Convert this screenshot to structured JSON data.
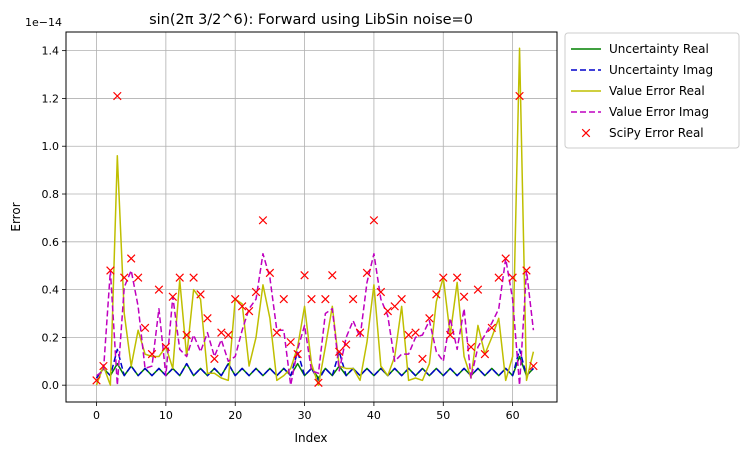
{
  "chart_data": {
    "type": "line",
    "title": "sin(2π 3/2^6): Forward using LibSin noise=0",
    "xlabel": "Index",
    "ylabel": "Error",
    "y_multiplier_label": "1e−14",
    "y_scale_exponent": -14,
    "xlim": [
      -4.4,
      66.4
    ],
    "ylim": [
      -0.0704,
      1.478
    ],
    "x_ticks": [
      0,
      10,
      20,
      30,
      40,
      50,
      60
    ],
    "y_ticks": [
      0.0,
      0.2,
      0.4,
      0.6,
      0.8,
      1.0,
      1.2,
      1.4
    ],
    "y_tick_labels": [
      "0.0",
      "0.2",
      "0.4",
      "0.6",
      "0.8",
      "1.0",
      "1.2",
      "1.4"
    ],
    "grid": true,
    "legend_position": "outside-upper-right",
    "x": [
      0,
      1,
      2,
      3,
      4,
      5,
      6,
      7,
      8,
      9,
      10,
      11,
      12,
      13,
      14,
      15,
      16,
      17,
      18,
      19,
      20,
      21,
      22,
      23,
      24,
      25,
      26,
      27,
      28,
      29,
      30,
      31,
      32,
      33,
      34,
      35,
      36,
      37,
      38,
      39,
      40,
      41,
      42,
      43,
      44,
      45,
      46,
      47,
      48,
      49,
      50,
      51,
      52,
      53,
      54,
      55,
      56,
      57,
      58,
      59,
      60,
      61,
      62,
      63
    ],
    "series": [
      {
        "name": "Uncertainty Real",
        "color": "#008000",
        "style": "solid",
        "values": [
          0.03,
          0.07,
          0.04,
          0.09,
          0.04,
          0.08,
          0.04,
          0.07,
          0.04,
          0.07,
          0.04,
          0.07,
          0.04,
          0.09,
          0.04,
          0.07,
          0.04,
          0.07,
          0.04,
          0.09,
          0.04,
          0.07,
          0.04,
          0.07,
          0.04,
          0.07,
          0.04,
          0.07,
          0.04,
          0.09,
          0.04,
          0.07,
          0.03,
          0.07,
          0.04,
          0.08,
          0.04,
          0.07,
          0.04,
          0.07,
          0.04,
          0.07,
          0.04,
          0.07,
          0.04,
          0.07,
          0.04,
          0.07,
          0.04,
          0.07,
          0.04,
          0.07,
          0.04,
          0.07,
          0.04,
          0.07,
          0.04,
          0.07,
          0.04,
          0.07,
          0.04,
          0.12,
          0.04,
          0.07
        ]
      },
      {
        "name": "Uncertainty Imag",
        "color": "#0000cc",
        "style": "dashed",
        "values": [
          0.03,
          0.07,
          0.04,
          0.15,
          0.04,
          0.08,
          0.04,
          0.07,
          0.04,
          0.07,
          0.04,
          0.07,
          0.04,
          0.09,
          0.04,
          0.07,
          0.04,
          0.07,
          0.04,
          0.09,
          0.04,
          0.07,
          0.04,
          0.07,
          0.04,
          0.07,
          0.04,
          0.07,
          0.04,
          0.14,
          0.04,
          0.07,
          0.02,
          0.07,
          0.04,
          0.14,
          0.04,
          0.07,
          0.04,
          0.07,
          0.04,
          0.07,
          0.04,
          0.07,
          0.04,
          0.07,
          0.04,
          0.07,
          0.04,
          0.07,
          0.04,
          0.07,
          0.04,
          0.07,
          0.04,
          0.07,
          0.04,
          0.07,
          0.04,
          0.07,
          0.04,
          0.15,
          0.04,
          0.07
        ]
      },
      {
        "name": "Value Error Real",
        "color": "#bfbf00",
        "style": "solid",
        "values": [
          0.0,
          0.08,
          0.0,
          0.96,
          0.3,
          0.08,
          0.23,
          0.13,
          0.12,
          0.12,
          0.16,
          0.07,
          0.44,
          0.12,
          0.4,
          0.36,
          0.05,
          0.05,
          0.03,
          0.02,
          0.36,
          0.34,
          0.08,
          0.2,
          0.42,
          0.28,
          0.02,
          0.04,
          0.07,
          0.16,
          0.33,
          0.09,
          0.0,
          0.16,
          0.33,
          0.08,
          0.07,
          0.07,
          0.02,
          0.18,
          0.42,
          0.08,
          0.04,
          0.12,
          0.33,
          0.02,
          0.03,
          0.02,
          0.09,
          0.35,
          0.45,
          0.21,
          0.43,
          0.12,
          0.03,
          0.25,
          0.13,
          0.2,
          0.28,
          0.02,
          0.12,
          1.41,
          0.02,
          0.14
        ]
      },
      {
        "name": "Value Error Imag",
        "color": "#bf00bf",
        "style": "dashed",
        "values": [
          0.04,
          0.06,
          0.48,
          0.0,
          0.41,
          0.48,
          0.33,
          0.07,
          0.08,
          0.32,
          0.04,
          0.37,
          0.15,
          0.12,
          0.21,
          0.14,
          0.22,
          0.12,
          0.19,
          0.1,
          0.12,
          0.23,
          0.32,
          0.36,
          0.55,
          0.45,
          0.23,
          0.23,
          0.0,
          0.15,
          0.25,
          0.06,
          0.05,
          0.3,
          0.32,
          0.06,
          0.2,
          0.27,
          0.2,
          0.43,
          0.55,
          0.36,
          0.29,
          0.1,
          0.13,
          0.13,
          0.2,
          0.21,
          0.27,
          0.14,
          0.1,
          0.28,
          0.15,
          0.32,
          0.03,
          0.16,
          0.21,
          0.26,
          0.32,
          0.53,
          0.36,
          0.0,
          0.48,
          0.23
        ]
      },
      {
        "name": "SciPy Error Real",
        "color": "#ff0000",
        "style": "x-marker",
        "values": [
          0.02,
          0.08,
          0.48,
          1.21,
          0.45,
          0.53,
          0.45,
          0.24,
          0.13,
          0.4,
          0.16,
          0.37,
          0.45,
          0.21,
          0.45,
          0.38,
          0.28,
          0.11,
          0.22,
          0.21,
          0.36,
          0.33,
          0.31,
          0.39,
          0.69,
          0.47,
          0.22,
          0.36,
          0.18,
          0.13,
          0.46,
          0.36,
          0.01,
          0.36,
          0.46,
          0.14,
          0.17,
          0.36,
          0.22,
          0.47,
          0.69,
          0.39,
          0.31,
          0.33,
          0.36,
          0.21,
          0.22,
          0.11,
          0.28,
          0.38,
          0.45,
          0.21,
          0.45,
          0.37,
          0.16,
          0.4,
          0.13,
          0.24,
          0.45,
          0.53,
          0.45,
          1.21,
          0.48,
          0.08
        ]
      }
    ]
  }
}
